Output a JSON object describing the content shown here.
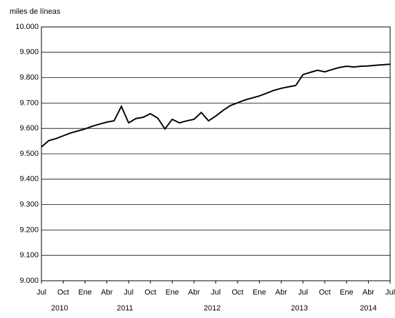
{
  "chart_data": {
    "type": "line",
    "y_label": "miles de líneas",
    "categories": [
      "Jul",
      null,
      null,
      "Oct",
      null,
      null,
      "Ene",
      null,
      null,
      "Abr",
      null,
      null,
      "Jul",
      null,
      null,
      "Oct",
      null,
      null,
      "Ene",
      null,
      null,
      "Abr",
      null,
      null,
      "Jul",
      null,
      null,
      "Oct",
      null,
      null,
      "Ene",
      null,
      null,
      "Abr",
      null,
      null,
      "Jul",
      null,
      null,
      "Oct",
      null,
      null,
      "Ene",
      null,
      null,
      "Abr",
      null,
      null,
      "Jul"
    ],
    "years": [
      "2010",
      "2011",
      "2012",
      "2013",
      "2014"
    ],
    "series": [
      {
        "color": "#000000",
        "values": [
          9527,
          9552,
          9560,
          9571,
          9582,
          9590,
          9598,
          9609,
          9617,
          9625,
          9630,
          9687,
          9622,
          9639,
          9644,
          9658,
          9641,
          9598,
          9636,
          9622,
          9630,
          9636,
          9663,
          9630,
          9649,
          9671,
          9690,
          9701,
          9712,
          9720,
          9728,
          9739,
          9750,
          9758,
          9764,
          9769,
          9812,
          9821,
          9829,
          9823,
          9832,
          9840,
          9845,
          9842,
          9845,
          9846,
          9849,
          9851,
          9853
        ]
      }
    ],
    "ylim": [
      9000,
      10000
    ],
    "yticks": [
      {
        "value": 9000,
        "label": "9.000"
      },
      {
        "value": 9100,
        "label": "9.100"
      },
      {
        "value": 9200,
        "label": "9.200"
      },
      {
        "value": 9300,
        "label": "9.300"
      },
      {
        "value": 9400,
        "label": "9.400"
      },
      {
        "value": 9500,
        "label": "9.500"
      },
      {
        "value": 9600,
        "label": "9.600"
      },
      {
        "value": 9700,
        "label": "9.700"
      },
      {
        "value": 9800,
        "label": "9.800"
      },
      {
        "value": 9900,
        "label": "9.900"
      },
      {
        "value": 10000,
        "label": "10.000"
      }
    ],
    "grid": true
  }
}
